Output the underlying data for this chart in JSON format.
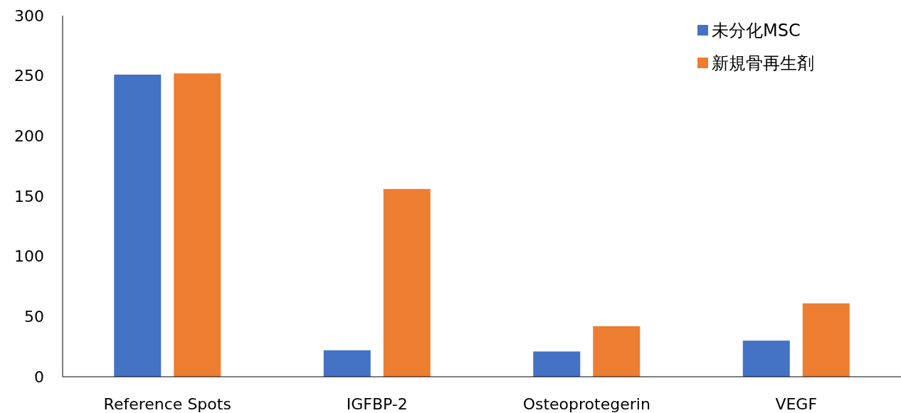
{
  "chart_data": {
    "type": "bar",
    "categories": [
      "Reference Spots",
      "IGFBP-2",
      "Osteoprotegerin",
      "VEGF"
    ],
    "series": [
      {
        "name": "未分化MSC",
        "color": "#4472c4",
        "values": [
          251,
          22,
          21,
          30
        ]
      },
      {
        "name": "新規骨再生剤",
        "color": "#ed7d31",
        "values": [
          252,
          156,
          42,
          61
        ]
      }
    ],
    "ylim": [
      0,
      300
    ],
    "yticks": [
      0,
      50,
      100,
      150,
      200,
      250,
      300
    ],
    "grid": false,
    "legend": "top right"
  }
}
